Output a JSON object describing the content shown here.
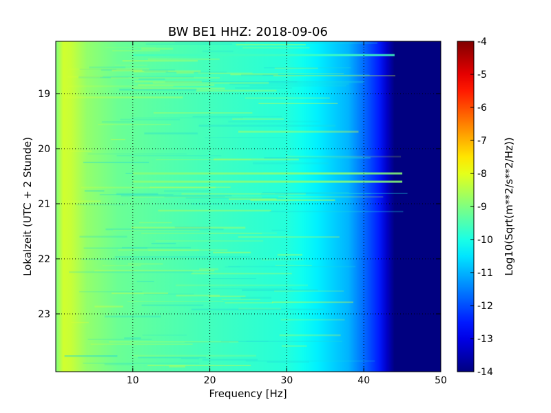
{
  "chart_data": {
    "type": "heatmap",
    "title": "BW BE1 HHZ: 2018-09-06",
    "xlabel": "Frequency [Hz]",
    "ylabel": "Lokalzeit (UTC + 2 Stunde)",
    "xlim": [
      0,
      50
    ],
    "ylim": [
      24.05,
      18.05
    ],
    "x_ticks": [
      "10",
      "20",
      "30",
      "40",
      "50"
    ],
    "y_ticks": [
      "19",
      "20",
      "21",
      "22",
      "23"
    ],
    "grid": true,
    "colorbar": {
      "label": "Log10(Sqrt(m**2/s**2/Hz))",
      "range": [
        -14,
        -4
      ],
      "ticks": [
        "-4",
        "-5",
        "-6",
        "-7",
        "-8",
        "-9",
        "-10",
        "-11",
        "-12",
        "-13",
        "-14"
      ],
      "colormap": "jet"
    },
    "frequency_profile": {
      "frequency_hz": [
        0,
        1,
        2,
        4,
        8,
        15,
        20,
        25,
        30,
        32,
        34,
        36,
        38,
        40,
        42,
        43,
        44,
        45,
        50
      ],
      "log10_amplitude": [
        -9.0,
        -8.2,
        -8.3,
        -8.8,
        -9.2,
        -9.45,
        -9.6,
        -9.75,
        -9.9,
        -10.1,
        -10.4,
        -10.7,
        -11.0,
        -11.7,
        -12.5,
        -13.3,
        -14.0,
        -14.0,
        -14.0
      ]
    },
    "strong_lines": [
      {
        "time_hour": 18.3,
        "freq_range_hz": [
          10,
          44
        ],
        "log10_amplitude": -9.6
      },
      {
        "time_hour": 20.45,
        "freq_range_hz": [
          10,
          45
        ],
        "log10_amplitude": -8.9
      },
      {
        "time_hour": 20.6,
        "freq_range_hz": [
          10,
          45
        ],
        "log10_amplitude": -8.9
      }
    ]
  },
  "colors": {
    "axis": "#000000",
    "grid": "#000000",
    "background": "#ffffff"
  }
}
